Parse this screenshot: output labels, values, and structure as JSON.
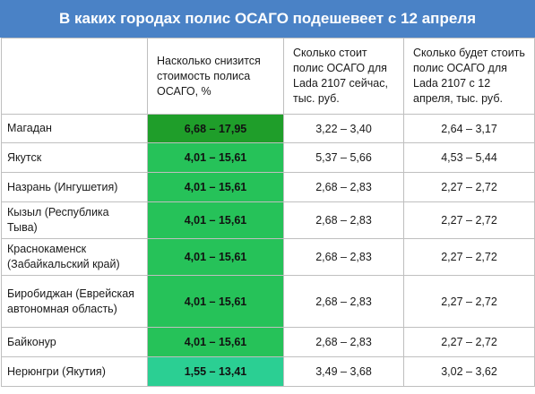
{
  "title": "В каких городах полис ОСАГО подешевеет с 12 апреля",
  "table": {
    "headers": [
      "",
      "Насколько снизится стоимость полиса ОСАГО, %",
      "Сколько стоит полис ОСАГО для Lada 2107 сейчас, тыс. руб.",
      "Сколько будет стоить полис ОСАГО для Lada 2107 с 12 апреля, тыс. руб."
    ],
    "rows": [
      {
        "city": "Магадан",
        "drop": "6,68 – 17,95",
        "now": "3,22 – 3,40",
        "after": "2,64 – 3,17",
        "color": "#1f9e2a"
      },
      {
        "city": "Якутск",
        "drop": "4,01 – 15,61",
        "now": "5,37 – 5,66",
        "after": "4,53 – 5,44",
        "color": "#26c259"
      },
      {
        "city": "Назрань (Ингушетия)",
        "drop": "4,01 – 15,61",
        "now": "2,68 – 2,83",
        "after": "2,27 – 2,72",
        "color": "#26c259"
      },
      {
        "city": "Кызыл (Республика Тыва)",
        "drop": "4,01 – 15,61",
        "now": "2,68 – 2,83",
        "after": "2,27 – 2,72",
        "color": "#26c259"
      },
      {
        "city": "Краснокаменск (Забайкальский край)",
        "drop": "4,01 – 15,61",
        "now": "2,68 – 2,83",
        "after": "2,27 – 2,72",
        "color": "#26c259"
      },
      {
        "city": "Биробиджан (Еврейская автономная область)",
        "drop": "4,01 – 15,61",
        "now": "2,68 – 2,83",
        "after": "2,27 – 2,72",
        "color": "#26c259"
      },
      {
        "city": "Байконур",
        "drop": "4,01 – 15,61",
        "now": "2,68 – 2,83",
        "after": "2,27 – 2,72",
        "color": "#26c259"
      },
      {
        "city": "Нерюнгри (Якутия)",
        "drop": "1,55 – 13,41",
        "now": "3,49 – 3,68",
        "after": "3,02 – 3,62",
        "color": "#2bcf93"
      }
    ]
  },
  "colors": {
    "title_bg": "#4a82c6",
    "title_text": "#ffffff"
  }
}
